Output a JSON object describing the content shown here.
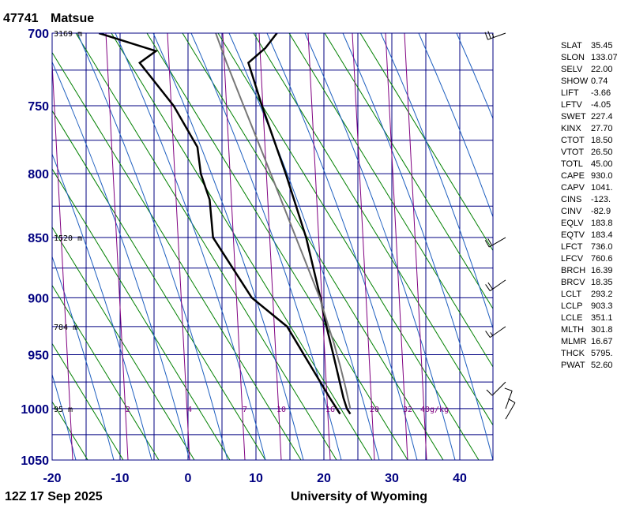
{
  "chart_data": {
    "type": "line",
    "station_id": "47741",
    "station_name": "Matsue",
    "time_label": "12Z 17 Sep 2025",
    "source_label": "University of Wyoming",
    "pressure_ticks": [
      700,
      750,
      800,
      850,
      900,
      950,
      1000,
      1050
    ],
    "temperature_ticks": [
      -20,
      -10,
      0,
      10,
      20,
      30,
      40
    ],
    "plim": [
      700,
      1050
    ],
    "xlim": [
      -20,
      45
    ],
    "log_pressure": true,
    "grid": true,
    "height_labels": [
      {
        "p": 700,
        "text": "3169 m"
      },
      {
        "p": 850,
        "text": "1520 m"
      },
      {
        "p": 925,
        "text": "784 m"
      },
      {
        "p": 1000,
        "text": "95 m"
      }
    ],
    "mixing_ratio_labels": [
      "2",
      "4",
      "7",
      "10",
      "16",
      "20",
      "32",
      "40g/kg"
    ],
    "mixing_ratio_values": [
      2,
      4,
      7,
      10,
      16,
      20,
      32,
      40
    ],
    "series": [
      {
        "id": "temperature",
        "color": "#000000",
        "points": [
          [
            1005,
            24
          ],
          [
            1000,
            23.5
          ],
          [
            990,
            23
          ],
          [
            950,
            21.5
          ],
          [
            925,
            20.5
          ],
          [
            900,
            19.6
          ],
          [
            850,
            17.5
          ],
          [
            800,
            14.5
          ],
          [
            750,
            11.0
          ],
          [
            720,
            9.0
          ],
          [
            710,
            11.5
          ],
          [
            700,
            13.2
          ]
        ]
      },
      {
        "id": "dewpoint",
        "color": "#000000",
        "points": [
          [
            1005,
            22.5
          ],
          [
            1000,
            22
          ],
          [
            990,
            21
          ],
          [
            925,
            14.7
          ],
          [
            900,
            9.5
          ],
          [
            850,
            3.8
          ],
          [
            820,
            3.3
          ],
          [
            800,
            2.0
          ],
          [
            780,
            1.5
          ],
          [
            750,
            -2
          ],
          [
            720,
            -7
          ],
          [
            712,
            -4.6
          ],
          [
            700,
            -13
          ]
        ]
      },
      {
        "id": "parcel",
        "color": "#777777",
        "points": [
          [
            1000,
            24
          ],
          [
            980,
            23.3
          ],
          [
            960,
            22.5
          ],
          [
            940,
            21.6
          ],
          [
            925,
            20.8
          ],
          [
            900,
            19.5
          ],
          [
            850,
            16.0
          ],
          [
            800,
            12.3
          ],
          [
            750,
            8.3
          ],
          [
            720,
            5.8
          ],
          [
            700,
            4.2
          ]
        ]
      }
    ],
    "wind_barbs": [
      {
        "p": 700,
        "dir": 250,
        "kt": 25
      },
      {
        "p": 850,
        "dir": 240,
        "kt": 20
      },
      {
        "p": 885,
        "dir": 235,
        "kt": 20
      },
      {
        "p": 925,
        "dir": 235,
        "kt": 15
      },
      {
        "p": 975,
        "dir": 225,
        "kt": 10
      },
      {
        "p": 1000,
        "dir": 20,
        "kt": 10
      },
      {
        "p": 1010,
        "dir": 30,
        "kt": 10
      }
    ]
  },
  "indices": [
    {
      "name": "SLAT",
      "value": "35.45"
    },
    {
      "name": "SLON",
      "value": "133.07"
    },
    {
      "name": "SELV",
      "value": "22.00"
    },
    {
      "name": "SHOW",
      "value": "0.74"
    },
    {
      "name": "LIFT",
      "value": "-3.66"
    },
    {
      "name": "LFTV",
      "value": "-4.05"
    },
    {
      "name": "SWET",
      "value": "227.4"
    },
    {
      "name": "KINX",
      "value": "27.70"
    },
    {
      "name": "CTOT",
      "value": "18.50"
    },
    {
      "name": "VTOT",
      "value": "26.50"
    },
    {
      "name": "TOTL",
      "value": "45.00"
    },
    {
      "name": "CAPE",
      "value": "930.0"
    },
    {
      "name": "CAPV",
      "value": "1041."
    },
    {
      "name": "CINS",
      "value": "-123."
    },
    {
      "name": "CINV",
      "value": "-82.9"
    },
    {
      "name": "EQLV",
      "value": "183.8"
    },
    {
      "name": "EQTV",
      "value": "183.4"
    },
    {
      "name": "LFCT",
      "value": "736.0"
    },
    {
      "name": "LFCV",
      "value": "760.6"
    },
    {
      "name": "BRCH",
      "value": "16.39"
    },
    {
      "name": "BRCV",
      "value": "18.35"
    },
    {
      "name": "LCLT",
      "value": "293.2"
    },
    {
      "name": "LCLP",
      "value": "903.3"
    },
    {
      "name": "LCLE",
      "value": "351.1"
    },
    {
      "name": "MLTH",
      "value": "301.8"
    },
    {
      "name": "MLMR",
      "value": "16.67"
    },
    {
      "name": "THCK",
      "value": "5795."
    },
    {
      "name": "PWAT",
      "value": "52.60"
    }
  ],
  "colors": {
    "grid": "#000080",
    "dry_adiabat": "#008000",
    "moist_adiabat": "#1e5fbf",
    "mixing_ratio": "#800080",
    "axis_label": "#000080"
  }
}
